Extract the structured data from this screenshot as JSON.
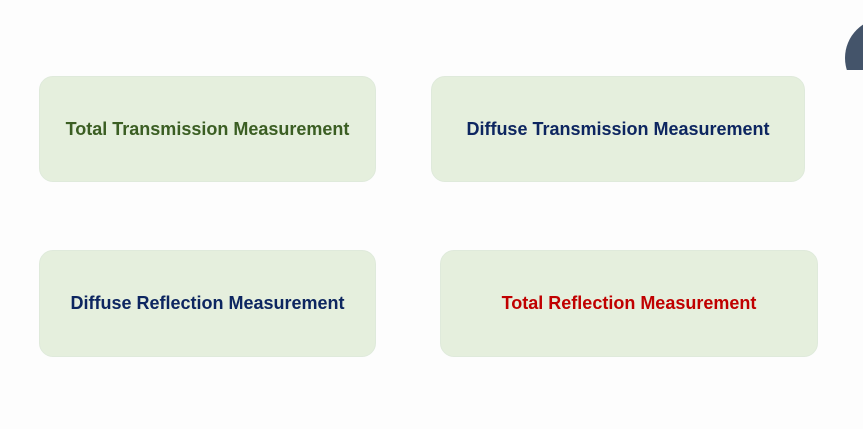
{
  "cards": [
    {
      "label": "Total Transmission Measurement",
      "color": "#3b5e23"
    },
    {
      "label": "Diffuse Transmission Measurement",
      "color": "#0d2660"
    },
    {
      "label": "Diffuse Reflection Measurement",
      "color": "#0d2660"
    },
    {
      "label": "Total Reflection Measurement",
      "color": "#c00000"
    }
  ],
  "colors": {
    "card_background": "#e5efdd",
    "corner_shape": "#44546a"
  }
}
